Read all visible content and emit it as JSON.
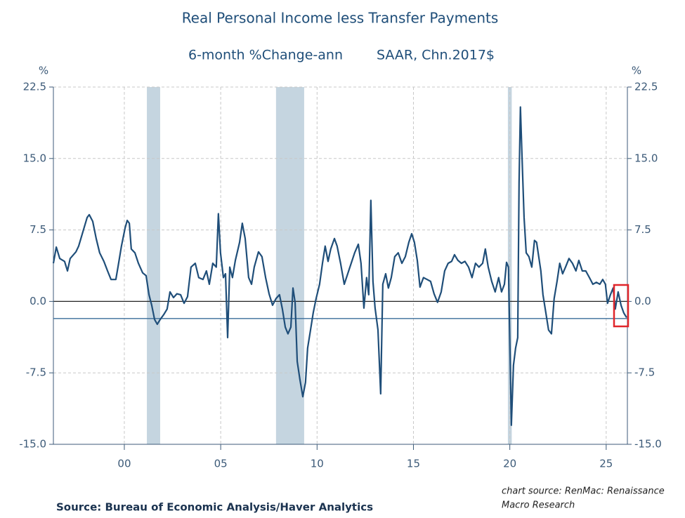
{
  "chart_data": {
    "type": "line",
    "title": "Real Personal Income less Transfer Payments",
    "subtitle": [
      "6-month %Change-ann",
      "SAAR, Chn.2017$"
    ],
    "y_unit": "%",
    "y2_unit": "%",
    "source": "Source:  Bureau of Economic Analysis/Haver Analytics",
    "credit": [
      "chart source: RenMac: Renaissance",
      "Macro Research"
    ],
    "color": "#1f4e79",
    "recession_color": "#c5d5e0",
    "reference_line": -1.8,
    "reference_color": "#3a6d99",
    "grid": true,
    "recessions": [
      [
        2001.17,
        2001.86
      ],
      [
        2007.87,
        2009.33
      ],
      [
        2019.9,
        2020.1
      ]
    ],
    "xlim": [
      1996.32,
      2026.1
    ],
    "xticks": [
      {
        "value": 2000,
        "label": "00"
      },
      {
        "value": 2005,
        "label": "05"
      },
      {
        "value": 2010,
        "label": "10"
      },
      {
        "value": 2015,
        "label": "15"
      },
      {
        "value": 2020,
        "label": "20"
      },
      {
        "value": 2025,
        "label": "25"
      }
    ],
    "ylim": [
      -15,
      22.5
    ],
    "yticks": [
      {
        "value": 22.5,
        "label": "22.5"
      },
      {
        "value": 15,
        "label": "15.0"
      },
      {
        "value": 7.5,
        "label": "7.5"
      },
      {
        "value": 0,
        "label": "0.0"
      },
      {
        "value": -7.5,
        "label": "-7.5"
      },
      {
        "value": -15,
        "label": "-15.0"
      }
    ],
    "x": [
      1996.32,
      1996.47,
      1996.65,
      1996.9,
      1997.05,
      1997.19,
      1997.49,
      1997.63,
      1997.85,
      1998.07,
      1998.18,
      1998.36,
      1998.54,
      1998.72,
      1998.94,
      1999.13,
      1999.31,
      1999.56,
      1999.67,
      1999.85,
      2000.04,
      2000.15,
      2000.26,
      2000.36,
      2000.55,
      2000.73,
      2000.95,
      2001.13,
      2001.28,
      2001.42,
      2001.57,
      2001.71,
      2001.86,
      2002.04,
      2002.22,
      2002.37,
      2002.55,
      2002.73,
      2002.92,
      2003.1,
      2003.28,
      2003.46,
      2003.68,
      2003.86,
      2004.08,
      2004.26,
      2004.41,
      2004.59,
      2004.77,
      2004.88,
      2004.99,
      2005.14,
      2005.25,
      2005.36,
      2005.47,
      2005.61,
      2005.76,
      2005.98,
      2006.12,
      2006.27,
      2006.45,
      2006.6,
      2006.74,
      2006.96,
      2007.14,
      2007.33,
      2007.51,
      2007.69,
      2007.87,
      2008.05,
      2008.2,
      2008.35,
      2008.49,
      2008.64,
      2008.75,
      2008.86,
      2008.97,
      2009.11,
      2009.26,
      2009.4,
      2009.51,
      2009.66,
      2009.8,
      2009.95,
      2010.13,
      2010.28,
      2010.42,
      2010.57,
      2010.71,
      2010.9,
      2011.04,
      2011.22,
      2011.41,
      2011.59,
      2011.77,
      2011.95,
      2012.14,
      2012.28,
      2012.43,
      2012.57,
      2012.68,
      2012.79,
      2012.9,
      2013.01,
      2013.16,
      2013.3,
      2013.41,
      2013.56,
      2013.7,
      2013.85,
      2014.03,
      2014.21,
      2014.4,
      2014.58,
      2014.76,
      2014.91,
      2015.05,
      2015.2,
      2015.34,
      2015.52,
      2015.71,
      2015.89,
      2016.07,
      2016.25,
      2016.44,
      2016.62,
      2016.8,
      2016.98,
      2017.13,
      2017.31,
      2017.49,
      2017.67,
      2017.86,
      2018.04,
      2018.22,
      2018.4,
      2018.59,
      2018.73,
      2018.88,
      2019.06,
      2019.24,
      2019.42,
      2019.57,
      2019.72,
      2019.83,
      2019.93,
      2020.01,
      2020.08,
      2020.19,
      2020.3,
      2020.41,
      2020.48,
      2020.55,
      2020.63,
      2020.74,
      2020.85,
      2020.99,
      2021.14,
      2021.28,
      2021.39,
      2021.5,
      2021.61,
      2021.72,
      2021.87,
      2022.01,
      2022.16,
      2022.3,
      2022.45,
      2022.59,
      2022.74,
      2022.89,
      2023.07,
      2023.25,
      2023.43,
      2023.58,
      2023.76,
      2023.94,
      2024.13,
      2024.31,
      2024.49,
      2024.67,
      2024.82,
      2024.96,
      2025.07,
      2025.22,
      2025.36,
      2025.47,
      2025.62,
      2025.77,
      2025.91,
      2026.06
    ],
    "values": [
      4.0,
      5.7,
      4.5,
      4.2,
      3.2,
      4.5,
      5.2,
      5.8,
      7.3,
      8.8,
      9.1,
      8.4,
      6.6,
      5.1,
      4.2,
      3.2,
      2.3,
      2.3,
      3.6,
      5.8,
      7.7,
      8.5,
      8.2,
      5.5,
      5.1,
      4.0,
      3.0,
      2.7,
      0.7,
      -0.4,
      -1.9,
      -2.4,
      -1.9,
      -1.4,
      -0.8,
      1.0,
      0.4,
      0.8,
      0.7,
      -0.2,
      0.5,
      3.6,
      4.0,
      2.5,
      2.3,
      3.2,
      1.8,
      4.0,
      3.6,
      9.2,
      5.1,
      2.5,
      2.9,
      -3.8,
      3.6,
      2.5,
      4.3,
      6.2,
      8.2,
      6.6,
      2.5,
      1.8,
      3.6,
      5.2,
      4.7,
      2.5,
      0.8,
      -0.4,
      0.3,
      0.7,
      -0.8,
      -2.7,
      -3.4,
      -2.7,
      1.4,
      -0.1,
      -6.3,
      -8.2,
      -10.0,
      -8.5,
      -4.9,
      -3.0,
      -1.2,
      0.3,
      1.8,
      4.0,
      5.8,
      4.2,
      5.5,
      6.6,
      5.8,
      4.0,
      1.8,
      2.9,
      4.0,
      5.1,
      6.0,
      4.0,
      -0.7,
      2.5,
      0.7,
      10.6,
      2.1,
      -0.7,
      -3.0,
      -9.7,
      1.8,
      2.9,
      1.4,
      2.5,
      4.7,
      5.1,
      4.0,
      4.7,
      6.2,
      7.1,
      6.2,
      4.3,
      1.5,
      2.5,
      2.3,
      2.1,
      0.8,
      -0.1,
      1.0,
      3.2,
      4.0,
      4.2,
      4.9,
      4.3,
      4.0,
      4.2,
      3.6,
      2.5,
      4.0,
      3.6,
      4.0,
      5.5,
      3.6,
      2.1,
      1.0,
      2.5,
      1.0,
      1.8,
      4.1,
      3.6,
      -5.2,
      -13.0,
      -6.7,
      -4.9,
      -3.8,
      12.5,
      20.4,
      15.4,
      8.8,
      5.1,
      4.7,
      3.6,
      6.4,
      6.2,
      4.7,
      3.2,
      0.7,
      -1.2,
      -3.0,
      -3.4,
      0.3,
      2.1,
      4.0,
      2.9,
      3.6,
      4.5,
      4.0,
      3.2,
      4.3,
      3.2,
      3.2,
      2.5,
      1.8,
      2.0,
      1.8,
      2.3,
      1.8,
      -0.2,
      0.7,
      1.4,
      -0.8,
      1.0,
      -0.4,
      -1.2,
      -1.7
    ]
  }
}
